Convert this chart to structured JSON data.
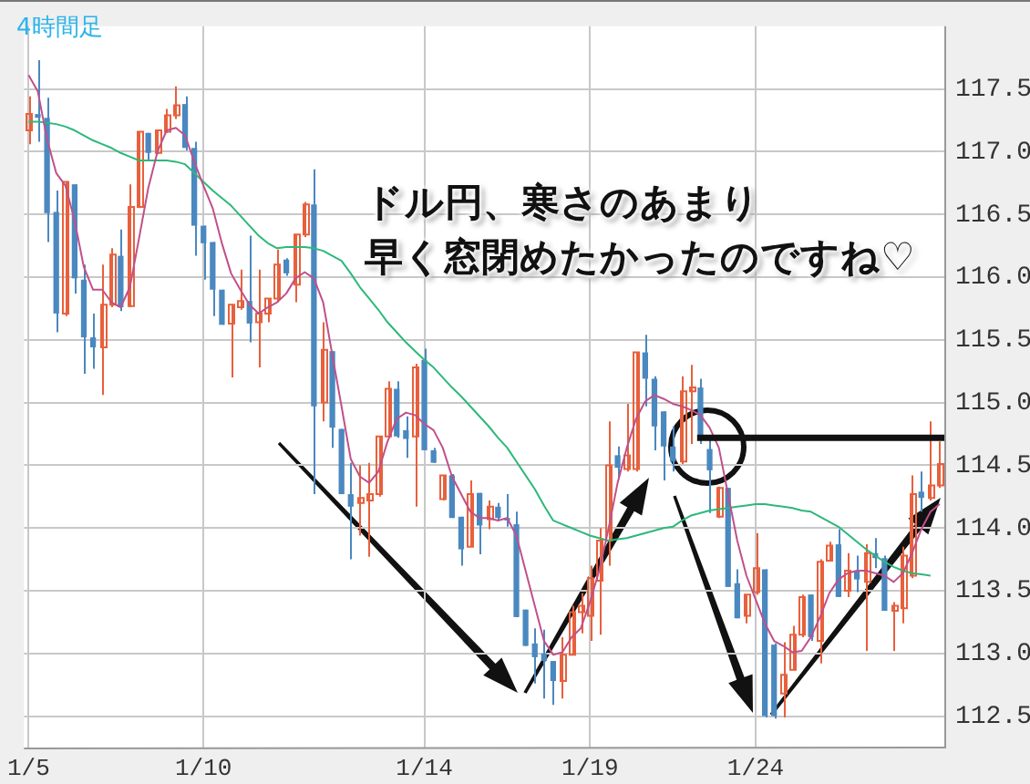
{
  "chart_data": {
    "type": "candlestick",
    "title": "4時間足",
    "annotations": [
      "ドル円、寒さのあまり",
      "早く窓閉めたかったのですね♡"
    ],
    "ref_lines": [
      {
        "axis": "y",
        "value": 114.72,
        "color": "#111111"
      }
    ],
    "categories": [
      "1/5",
      null,
      null,
      null,
      null,
      null,
      null,
      null,
      null,
      null,
      null,
      null,
      null,
      null,
      null,
      null,
      null,
      null,
      null,
      "1/10",
      null,
      null,
      null,
      null,
      null,
      null,
      null,
      null,
      null,
      null,
      null,
      null,
      null,
      null,
      null,
      null,
      null,
      null,
      null,
      null,
      null,
      null,
      null,
      "1/14",
      null,
      null,
      null,
      null,
      null,
      null,
      null,
      null,
      null,
      null,
      null,
      null,
      null,
      null,
      null,
      null,
      null,
      "1/19",
      null,
      null,
      null,
      null,
      null,
      null,
      null,
      null,
      null,
      null,
      null,
      null,
      null,
      null,
      null,
      null,
      null,
      "1/24",
      null,
      null,
      null,
      null,
      null,
      null,
      null,
      null,
      null,
      null,
      null,
      null,
      null,
      null,
      null,
      null,
      null,
      null,
      null,
      null
    ],
    "ohlc": [
      [
        117.17,
        117.44,
        117.06,
        117.3
      ],
      [
        117.3,
        117.73,
        117.08,
        117.27
      ],
      [
        117.27,
        117.43,
        116.28,
        116.51
      ],
      [
        116.52,
        116.69,
        115.56,
        115.71
      ],
      [
        115.71,
        116.76,
        115.69,
        116.76
      ],
      [
        116.74,
        116.74,
        115.87,
        115.99
      ],
      [
        115.98,
        116.1,
        115.23,
        115.52
      ],
      [
        115.52,
        115.71,
        115.27,
        115.44
      ],
      [
        115.44,
        116.1,
        115.06,
        115.78
      ],
      [
        115.78,
        116.23,
        115.76,
        116.18
      ],
      [
        116.17,
        116.38,
        115.73,
        115.76
      ],
      [
        115.77,
        116.74,
        115.76,
        116.56
      ],
      [
        116.56,
        117.16,
        116.55,
        117.16
      ],
      [
        117.15,
        117.15,
        116.93,
        116.99
      ],
      [
        116.99,
        117.17,
        116.98,
        117.17
      ],
      [
        117.16,
        117.34,
        117.15,
        117.29
      ],
      [
        117.29,
        117.52,
        117.26,
        117.37
      ],
      [
        117.38,
        117.44,
        117.01,
        117.03
      ],
      [
        117.03,
        117.08,
        116.17,
        116.41
      ],
      [
        116.41,
        116.41,
        115.98,
        116.27
      ],
      [
        116.28,
        116.28,
        115.69,
        115.9
      ],
      [
        115.9,
        115.9,
        115.62,
        115.62
      ],
      [
        115.63,
        115.78,
        115.2,
        115.78
      ],
      [
        115.76,
        116.06,
        115.74,
        115.81
      ],
      [
        115.81,
        116.33,
        115.48,
        115.63
      ],
      [
        115.64,
        116.06,
        115.28,
        115.71
      ],
      [
        115.71,
        115.83,
        115.64,
        115.83
      ],
      [
        115.83,
        116.22,
        115.8,
        116.1
      ],
      [
        116.14,
        116.15,
        116.01,
        116.03
      ],
      [
        115.94,
        116.34,
        115.8,
        116.34
      ],
      [
        116.34,
        116.6,
        116.32,
        116.58
      ],
      [
        116.58,
        116.86,
        114.27,
        114.97
      ],
      [
        115,
        115.64,
        114.85,
        115.42
      ],
      [
        115.41,
        115.41,
        114.64,
        114.8
      ],
      [
        114.79,
        114.79,
        114.27,
        114.27
      ],
      [
        114.27,
        114.52,
        113.75,
        114.17
      ],
      [
        114.2,
        114.5,
        113.94,
        114.24
      ],
      [
        114.22,
        114.52,
        113.77,
        114.27
      ],
      [
        114.27,
        114.73,
        114.25,
        114.73
      ],
      [
        114.73,
        115.17,
        114.73,
        115.11
      ],
      [
        115.11,
        115.17,
        114.72,
        114.73
      ],
      [
        114.78,
        114.89,
        114.56,
        114.71
      ],
      [
        114.73,
        115.31,
        114.17,
        115.28
      ],
      [
        115.34,
        115.43,
        114.62,
        114.62
      ],
      [
        114.62,
        114.64,
        114.52,
        114.52
      ],
      [
        114.23,
        114.42,
        114.22,
        114.42
      ],
      [
        114.42,
        114.43,
        114.08,
        114.08
      ],
      [
        114.09,
        114.09,
        113.7,
        113.83
      ],
      [
        113.85,
        114.38,
        113.85,
        114.27
      ],
      [
        114.28,
        114.28,
        113.79,
        114.02
      ],
      [
        114.07,
        114.22,
        113.99,
        114.17
      ],
      [
        114.17,
        114.2,
        114.06,
        114.08
      ],
      [
        114.08,
        114.27,
        114.01,
        114.06
      ],
      [
        114.03,
        114.13,
        113.29,
        113.29
      ],
      [
        113.35,
        113.35,
        113.06,
        113.06
      ],
      [
        113.08,
        113.2,
        112.76,
        112.97
      ],
      [
        113,
        113.19,
        112.64,
        112.94
      ],
      [
        112.94,
        112.94,
        112.59,
        112.78
      ],
      [
        112.78,
        113.13,
        112.64,
        112.99
      ],
      [
        112.99,
        113.38,
        112.99,
        113.33
      ],
      [
        113.33,
        113.48,
        113.16,
        113.38
      ],
      [
        113.3,
        113.7,
        113.1,
        113.6
      ],
      [
        113.58,
        114,
        113.15,
        113.9
      ],
      [
        113.9,
        114.85,
        113.7,
        114.5
      ],
      [
        114.58,
        114.65,
        114.39,
        114.48
      ],
      [
        114.47,
        114.99,
        114.45,
        114.58
      ],
      [
        114.47,
        115.4,
        114.45,
        115.4
      ],
      [
        115.4,
        115.54,
        114.97,
        115.19
      ],
      [
        115.19,
        115.21,
        114.62,
        114.81
      ],
      [
        114.93,
        114.93,
        114.38,
        114.65
      ],
      [
        114.65,
        114.81,
        114.45,
        114.53
      ],
      [
        114.53,
        115.21,
        114.51,
        115.09
      ],
      [
        115.09,
        115.3,
        114.67,
        115.12
      ],
      [
        115.12,
        115.19,
        114.67,
        114.7
      ],
      [
        114.63,
        114.7,
        114.12,
        114.46
      ],
      [
        114.09,
        114.33,
        114.08,
        114.32
      ],
      [
        114.32,
        114.32,
        113.53,
        113.53
      ],
      [
        113.56,
        113.67,
        113.28,
        113.28
      ],
      [
        113.3,
        113.47,
        113.24,
        113.47
      ],
      [
        113.49,
        113.96,
        113.47,
        113.68
      ],
      [
        113.67,
        113.67,
        112.49,
        112.5
      ],
      [
        113.07,
        113.08,
        112.48,
        112.5
      ],
      [
        112.68,
        113.09,
        112.49,
        112.83
      ],
      [
        112.87,
        113.22,
        112.87,
        113.15
      ],
      [
        113.15,
        113.47,
        113.13,
        113.45
      ],
      [
        113.47,
        113.47,
        113.1,
        113.13
      ],
      [
        113.1,
        113.75,
        112.92,
        113.73
      ],
      [
        113.74,
        113.89,
        113.74,
        113.86
      ],
      [
        113.87,
        113.99,
        113.45,
        113.45
      ],
      [
        113.5,
        113.8,
        113.45,
        113.66
      ],
      [
        113.66,
        113.78,
        113.49,
        113.59
      ],
      [
        113.57,
        113.87,
        113.02,
        113.8
      ],
      [
        113.8,
        113.92,
        113.68,
        113.76
      ],
      [
        113.76,
        113.78,
        113.34,
        113.34
      ],
      [
        113.34,
        113.41,
        113.02,
        113.38
      ],
      [
        113.36,
        113.85,
        113.24,
        113.78
      ],
      [
        113.62,
        114.42,
        113.6,
        114.27
      ],
      [
        114.29,
        114.45,
        114.13,
        114.24
      ],
      [
        114.24,
        114.85,
        114.22,
        114.34
      ],
      [
        114.34,
        114.69,
        114.32,
        114.51
      ]
    ],
    "colors": [
      "#e8603c",
      "#4a88c0",
      "#4a88c0",
      "#4a88c0",
      "#e8603c",
      "#4a88c0",
      "#4a88c0",
      "#4a88c0",
      "#e8603c",
      "#e8603c",
      "#4a88c0",
      "#e8603c",
      "#e8603c",
      "#4a88c0",
      "#e8603c",
      "#e8603c",
      "#e8603c",
      "#4a88c0",
      "#4a88c0",
      "#4a88c0",
      "#4a88c0",
      "#4a88c0",
      "#e8603c",
      "#e8603c",
      "#4a88c0",
      "#e8603c",
      "#e8603c",
      "#e8603c",
      "#4a88c0",
      "#e8603c",
      "#e8603c",
      "#4a88c0",
      "#e8603c",
      "#4a88c0",
      "#4a88c0",
      "#4a88c0",
      "#e8603c",
      "#e8603c",
      "#e8603c",
      "#e8603c",
      "#4a88c0",
      "#4a88c0",
      "#e8603c",
      "#4a88c0",
      "#4a88c0",
      "#e8603c",
      "#4a88c0",
      "#4a88c0",
      "#e8603c",
      "#4a88c0",
      "#e8603c",
      "#4a88c0",
      "#4a88c0",
      "#4a88c0",
      "#4a88c0",
      "#4a88c0",
      "#4a88c0",
      "#4a88c0",
      "#e8603c",
      "#e8603c",
      "#e8603c",
      "#e8603c",
      "#e8603c",
      "#e8603c",
      "#4a88c0",
      "#e8603c",
      "#e8603c",
      "#4a88c0",
      "#4a88c0",
      "#4a88c0",
      "#4a88c0",
      "#e8603c",
      "#e8603c",
      "#4a88c0",
      "#4a88c0",
      "#e8603c",
      "#4a88c0",
      "#4a88c0",
      "#e8603c",
      "#e8603c",
      "#4a88c0",
      "#4a88c0",
      "#e8603c",
      "#e8603c",
      "#e8603c",
      "#4a88c0",
      "#e8603c",
      "#e8603c",
      "#4a88c0",
      "#e8603c",
      "#4a88c0",
      "#e8603c",
      "#4a88c0",
      "#4a88c0",
      "#e8603c",
      "#e8603c",
      "#e8603c",
      "#4a88c0",
      "#e8603c",
      "#e8603c"
    ],
    "series": [
      {
        "type": "line",
        "color": "#c0508a",
        "values": [
          117.61,
          117.48,
          117.1,
          116.83,
          116.73,
          116.45,
          116.08,
          115.9,
          115.9,
          115.8,
          115.76,
          115.92,
          116.31,
          116.71,
          117.0,
          117.17,
          117.19,
          117.13,
          116.92,
          116.73,
          116.55,
          116.27,
          116.03,
          115.9,
          115.78,
          115.71,
          115.76,
          115.8,
          115.87,
          115.99,
          116.04,
          115.99,
          115.8,
          115.38,
          114.97,
          114.55,
          114.41,
          114.36,
          114.45,
          114.69,
          114.87,
          114.92,
          114.9,
          114.83,
          114.78,
          114.64,
          114.41,
          114.27,
          114.13,
          114.08,
          114.08,
          114.06,
          114.08,
          113.94,
          113.66,
          113.38,
          113.1,
          112.99,
          113.01,
          113.13,
          113.2,
          113.41,
          113.66,
          113.99,
          114.36,
          114.64,
          114.87,
          115.01,
          115.06,
          115.03,
          114.99,
          114.97,
          114.94,
          114.9,
          114.8,
          114.64,
          114.27,
          113.9,
          113.62,
          113.43,
          113.24,
          113.1,
          113.06,
          113.01,
          113.02,
          113.13,
          113.29,
          113.48,
          113.59,
          113.64,
          113.66,
          113.66,
          113.64,
          113.62,
          113.57,
          113.64,
          113.8,
          113.99,
          114.13,
          114.19
        ]
      },
      {
        "type": "line",
        "color": "#2db87a",
        "values": [
          117.24,
          117.24,
          117.23,
          117.22,
          117.2,
          117.17,
          117.13,
          117.09,
          117.06,
          117.03,
          116.99,
          116.96,
          116.93,
          116.93,
          116.93,
          116.93,
          116.92,
          116.9,
          116.83,
          116.76,
          116.69,
          116.63,
          116.57,
          116.49,
          116.41,
          116.33,
          116.27,
          116.23,
          116.24,
          116.24,
          116.24,
          116.23,
          116.21,
          116.17,
          116.13,
          116.03,
          115.92,
          115.83,
          115.74,
          115.64,
          115.56,
          115.48,
          115.41,
          115.34,
          115.28,
          115.2,
          115.12,
          115.05,
          114.97,
          114.89,
          114.81,
          114.72,
          114.64,
          114.53,
          114.42,
          114.31,
          114.18,
          114.06,
          114.03,
          114.0,
          113.97,
          113.94,
          113.92,
          113.9,
          113.91,
          113.92,
          113.94,
          113.96,
          113.98,
          114.0,
          114.01,
          114.06,
          114.1,
          114.12,
          114.14,
          114.15,
          114.16,
          114.17,
          114.18,
          114.19,
          114.19,
          114.18,
          114.17,
          114.16,
          114.14,
          114.13,
          114.09,
          114.05,
          114.01,
          113.95,
          113.89,
          113.83,
          113.78,
          113.73,
          113.69,
          113.66,
          113.64,
          113.63,
          113.62,
          null
        ]
      }
    ],
    "ylim": [
      112.25,
      118.0
    ],
    "yticks": [
      112.5,
      {
        "value": 113,
        "label": "113.0"
      },
      113.5,
      {
        "value": 114,
        "label": "114.0"
      },
      114.5,
      {
        "value": 115,
        "label": "115.0"
      },
      115.5,
      {
        "value": 116,
        "label": "116.0"
      },
      116.5,
      {
        "value": 117,
        "label": "117.0"
      },
      117.5
    ],
    "grid": true
  }
}
